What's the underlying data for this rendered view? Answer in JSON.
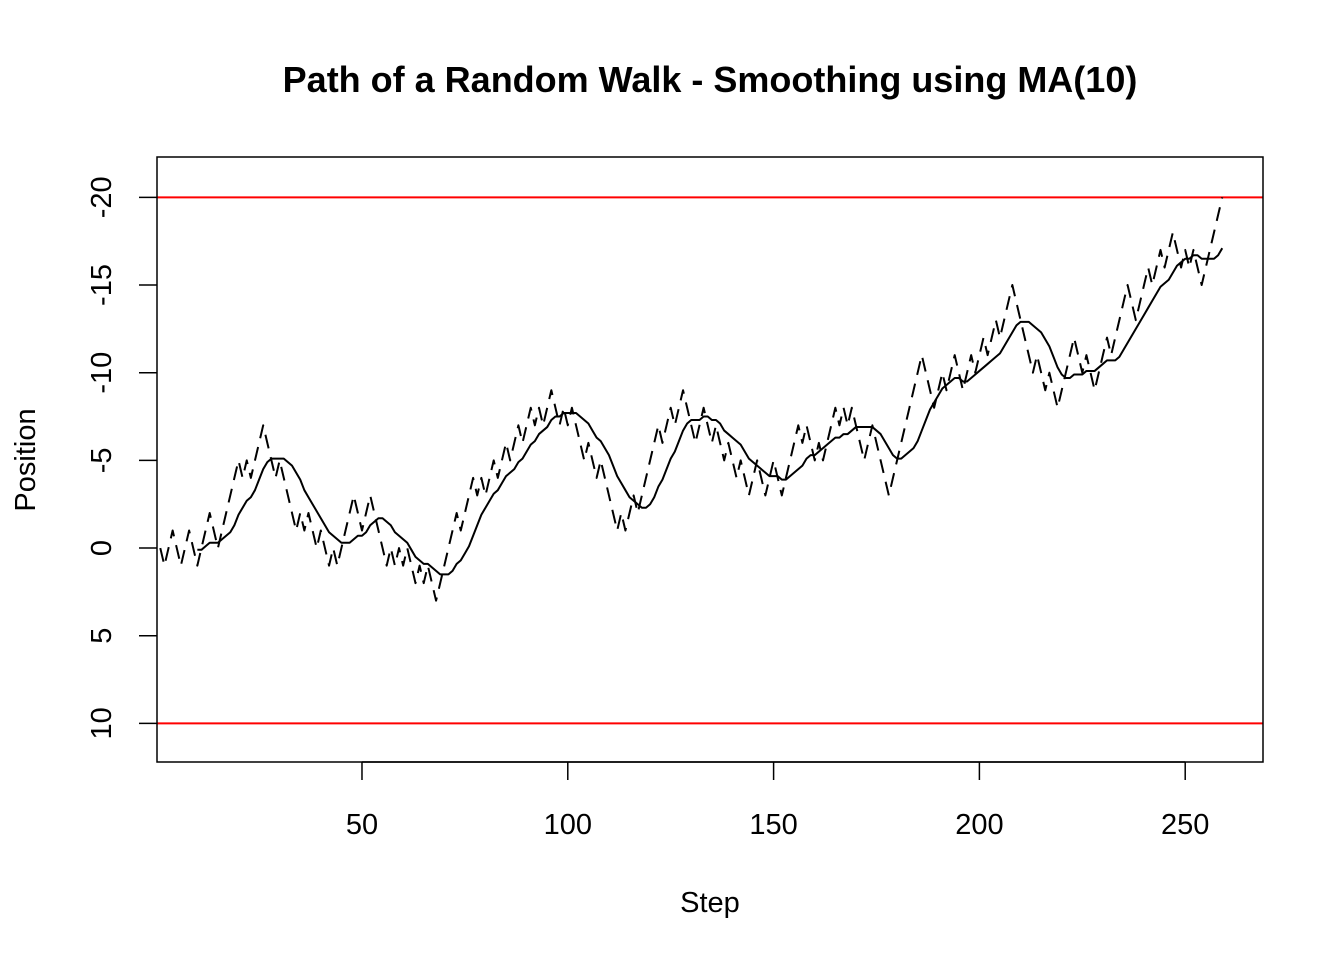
{
  "chart_data": {
    "type": "line",
    "title": "Path of a Random Walk - Smoothing using MA(10)",
    "xlabel": "Step",
    "ylabel": "Position",
    "xlim": [
      0.2,
      268.9
    ],
    "ylim": [
      12.2,
      -22.3
    ],
    "xticks": [
      50,
      100,
      150,
      200,
      250
    ],
    "yticks": [
      -20,
      -15,
      -10,
      -5,
      0,
      5,
      10
    ],
    "hlines": [
      -20,
      10
    ],
    "hline_color": "#ff0000",
    "x": [
      1,
      2,
      3,
      4,
      5,
      6,
      7,
      8,
      9,
      10,
      11,
      12,
      13,
      14,
      15,
      16,
      17,
      18,
      19,
      20,
      21,
      22,
      23,
      24,
      25,
      26,
      27,
      28,
      29,
      30,
      31,
      32,
      33,
      34,
      35,
      36,
      37,
      38,
      39,
      40,
      41,
      42,
      43,
      44,
      45,
      46,
      47,
      48,
      49,
      50,
      51,
      52,
      53,
      54,
      55,
      56,
      57,
      58,
      59,
      60,
      61,
      62,
      63,
      64,
      65,
      66,
      67,
      68,
      69,
      70,
      71,
      72,
      73,
      74,
      75,
      76,
      77,
      78,
      79,
      80,
      81,
      82,
      83,
      84,
      85,
      86,
      87,
      88,
      89,
      90,
      91,
      92,
      93,
      94,
      95,
      96,
      97,
      98,
      99,
      100,
      101,
      102,
      103,
      104,
      105,
      106,
      107,
      108,
      109,
      110,
      111,
      112,
      113,
      114,
      115,
      116,
      117,
      118,
      119,
      120,
      121,
      122,
      123,
      124,
      125,
      126,
      127,
      128,
      129,
      130,
      131,
      132,
      133,
      134,
      135,
      136,
      137,
      138,
      139,
      140,
      141,
      142,
      143,
      144,
      145,
      146,
      147,
      148,
      149,
      150,
      151,
      152,
      153,
      154,
      155,
      156,
      157,
      158,
      159,
      160,
      161,
      162,
      163,
      164,
      165,
      166,
      167,
      168,
      169,
      170,
      171,
      172,
      173,
      174,
      175,
      176,
      177,
      178,
      179,
      180,
      181,
      182,
      183,
      184,
      185,
      186,
      187,
      188,
      189,
      190,
      191,
      192,
      193,
      194,
      195,
      196,
      197,
      198,
      199,
      200,
      201,
      202,
      203,
      204,
      205,
      206,
      207,
      208,
      209,
      210,
      211,
      212,
      213,
      214,
      215,
      216,
      217,
      218,
      219,
      220,
      221,
      222,
      223,
      224,
      225,
      226,
      227,
      228,
      229,
      230,
      231,
      232,
      233,
      234,
      235,
      236,
      237,
      238,
      239,
      240,
      241,
      242,
      243,
      244,
      245,
      246,
      247,
      248,
      249,
      250,
      251,
      252,
      253,
      254,
      255,
      256,
      257,
      258,
      259
    ],
    "series": [
      {
        "color": "#000000",
        "dash": "dashed",
        "values": [
          0,
          1,
          0,
          -1,
          0,
          1,
          0,
          -1,
          0,
          1,
          0,
          -1,
          -2,
          -1,
          0,
          -1,
          -2,
          -3,
          -4,
          -5,
          -4,
          -5,
          -4,
          -5,
          -6,
          -7,
          -6,
          -5,
          -4,
          -5,
          -4,
          -3,
          -2,
          -1,
          -2,
          -1,
          -2,
          -1,
          0,
          -1,
          0,
          1,
          0,
          1,
          0,
          -1,
          -2,
          -3,
          -2,
          -1,
          -2,
          -3,
          -2,
          -1,
          0,
          1,
          0,
          1,
          0,
          1,
          0,
          1,
          2,
          1,
          2,
          1,
          2,
          3,
          2,
          1,
          0,
          -1,
          -2,
          -1,
          -2,
          -3,
          -4,
          -3,
          -4,
          -3,
          -4,
          -5,
          -4,
          -5,
          -6,
          -5,
          -6,
          -7,
          -6,
          -7,
          -8,
          -7,
          -8,
          -7,
          -8,
          -9,
          -8,
          -7,
          -8,
          -7,
          -8,
          -7,
          -6,
          -5,
          -6,
          -5,
          -4,
          -5,
          -4,
          -3,
          -2,
          -1,
          -2,
          -1,
          -2,
          -3,
          -2,
          -3,
          -4,
          -5,
          -6,
          -7,
          -6,
          -7,
          -8,
          -7,
          -8,
          -9,
          -8,
          -7,
          -6,
          -7,
          -8,
          -7,
          -6,
          -7,
          -6,
          -5,
          -6,
          -5,
          -4,
          -5,
          -4,
          -3,
          -4,
          -5,
          -4,
          -3,
          -4,
          -5,
          -4,
          -3,
          -4,
          -5,
          -6,
          -7,
          -6,
          -7,
          -6,
          -5,
          -6,
          -5,
          -6,
          -7,
          -8,
          -7,
          -8,
          -7,
          -8,
          -7,
          -6,
          -5,
          -6,
          -7,
          -6,
          -5,
          -4,
          -3,
          -4,
          -5,
          -6,
          -7,
          -8,
          -9,
          -10,
          -11,
          -10,
          -9,
          -8,
          -9,
          -10,
          -9,
          -10,
          -11,
          -10,
          -9,
          -10,
          -11,
          -10,
          -11,
          -12,
          -11,
          -12,
          -13,
          -12,
          -13,
          -14,
          -15,
          -14,
          -13,
          -12,
          -11,
          -10,
          -11,
          -10,
          -9,
          -10,
          -9,
          -8,
          -9,
          -10,
          -11,
          -12,
          -11,
          -10,
          -11,
          -10,
          -9,
          -10,
          -11,
          -12,
          -11,
          -12,
          -13,
          -14,
          -15,
          -14,
          -13,
          -14,
          -15,
          -16,
          -15,
          -16,
          -17,
          -16,
          -17,
          -18,
          -17,
          -16,
          -17,
          -16,
          -17,
          -16,
          -15,
          -16,
          -17,
          -18,
          -19,
          -20
        ]
      },
      {
        "color": "#000000",
        "dash": "solid",
        "values": [
          null,
          null,
          null,
          null,
          null,
          null,
          null,
          null,
          null,
          0.1,
          0.1,
          -0.1,
          -0.3,
          -0.3,
          -0.3,
          -0.5,
          -0.7,
          -0.9,
          -1.3,
          -1.9,
          -2.3,
          -2.7,
          -2.9,
          -3.3,
          -3.9,
          -4.5,
          -4.9,
          -5.1,
          -5.1,
          -5.1,
          -5.1,
          -4.9,
          -4.7,
          -4.3,
          -3.9,
          -3.3,
          -2.9,
          -2.5,
          -2.1,
          -1.7,
          -1.3,
          -0.9,
          -0.7,
          -0.5,
          -0.3,
          -0.3,
          -0.3,
          -0.5,
          -0.7,
          -0.7,
          -0.9,
          -1.3,
          -1.5,
          -1.7,
          -1.7,
          -1.5,
          -1.3,
          -0.9,
          -0.7,
          -0.5,
          -0.3,
          0.1,
          0.5,
          0.7,
          0.9,
          0.9,
          1.1,
          1.3,
          1.5,
          1.5,
          1.5,
          1.3,
          0.9,
          0.7,
          0.3,
          -0.1,
          -0.7,
          -1.3,
          -1.9,
          -2.3,
          -2.7,
          -3.1,
          -3.3,
          -3.7,
          -4.1,
          -4.3,
          -4.5,
          -4.9,
          -5.1,
          -5.5,
          -5.9,
          -6.1,
          -6.5,
          -6.7,
          -6.9,
          -7.3,
          -7.5,
          -7.5,
          -7.7,
          -7.7,
          -7.7,
          -7.7,
          -7.5,
          -7.3,
          -7.1,
          -6.7,
          -6.3,
          -6.1,
          -5.7,
          -5.3,
          -4.7,
          -4.1,
          -3.7,
          -3.3,
          -2.9,
          -2.7,
          -2.5,
          -2.3,
          -2.3,
          -2.5,
          -2.9,
          -3.5,
          -3.9,
          -4.5,
          -5.1,
          -5.5,
          -6.1,
          -6.7,
          -7.1,
          -7.3,
          -7.3,
          -7.3,
          -7.5,
          -7.5,
          -7.3,
          -7.3,
          -7.1,
          -6.7,
          -6.5,
          -6.3,
          -6.1,
          -5.9,
          -5.5,
          -5.1,
          -4.9,
          -4.7,
          -4.5,
          -4.3,
          -4.1,
          -4.1,
          -4.1,
          -3.9,
          -3.9,
          -4.1,
          -4.3,
          -4.5,
          -4.7,
          -5.1,
          -5.3,
          -5.3,
          -5.5,
          -5.7,
          -5.9,
          -6.1,
          -6.3,
          -6.3,
          -6.5,
          -6.5,
          -6.7,
          -6.9,
          -6.9,
          -6.9,
          -6.9,
          -6.9,
          -6.7,
          -6.5,
          -6.1,
          -5.7,
          -5.3,
          -5.1,
          -5.1,
          -5.3,
          -5.5,
          -5.7,
          -6.1,
          -6.7,
          -7.3,
          -7.9,
          -8.3,
          -8.7,
          -9.1,
          -9.3,
          -9.5,
          -9.7,
          -9.7,
          -9.5,
          -9.5,
          -9.7,
          -9.9,
          -10.1,
          -10.3,
          -10.5,
          -10.7,
          -10.9,
          -11.1,
          -11.5,
          -11.9,
          -12.3,
          -12.7,
          -12.9,
          -12.9,
          -12.9,
          -12.7,
          -12.5,
          -12.3,
          -11.9,
          -11.5,
          -10.9,
          -10.3,
          -9.9,
          -9.7,
          -9.7,
          -9.9,
          -9.9,
          -9.9,
          -10.1,
          -10.1,
          -10.1,
          -10.3,
          -10.5,
          -10.7,
          -10.7,
          -10.7,
          -10.9,
          -11.3,
          -11.7,
          -12.1,
          -12.5,
          -12.9,
          -13.3,
          -13.7,
          -14.1,
          -14.5,
          -14.9,
          -15.1,
          -15.3,
          -15.7,
          -16.1,
          -16.3,
          -16.5,
          -16.5,
          -16.7,
          -16.7,
          -16.5,
          -16.5,
          -16.5,
          -16.5,
          -16.7,
          -17.1
        ]
      }
    ]
  }
}
